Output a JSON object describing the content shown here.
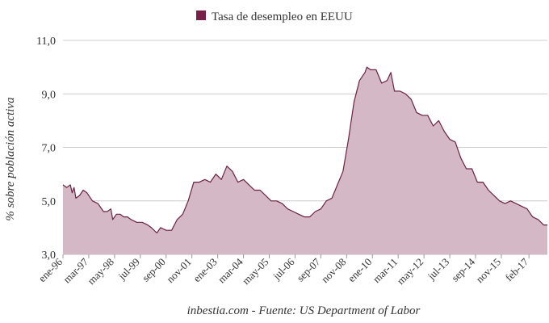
{
  "chart_data": {
    "type": "area",
    "ylabel": "% sobre población activa",
    "xlabel": "inbestia.com - Fuente: US Department of Labor",
    "ylim": [
      3.0,
      11.0
    ],
    "yticks": [
      "3,0",
      "5,0",
      "7,0",
      "9,0",
      "11,0"
    ],
    "ytick_values": [
      3,
      5,
      7,
      9,
      11
    ],
    "xlim": [
      "1996-01",
      "2017-12"
    ],
    "xticks": [
      {
        "label": "ene-96",
        "date": "1996-01"
      },
      {
        "label": "mar-97",
        "date": "1997-03"
      },
      {
        "label": "may-98",
        "date": "1998-05"
      },
      {
        "label": "jul-99",
        "date": "1999-07"
      },
      {
        "label": "sep-00",
        "date": "2000-09"
      },
      {
        "label": "nov-01",
        "date": "2001-11"
      },
      {
        "label": "ene-03",
        "date": "2003-01"
      },
      {
        "label": "mar-04",
        "date": "2004-03"
      },
      {
        "label": "may-05",
        "date": "2005-05"
      },
      {
        "label": "jul-06",
        "date": "2006-07"
      },
      {
        "label": "sep-07",
        "date": "2007-09"
      },
      {
        "label": "nov-08",
        "date": "2008-11"
      },
      {
        "label": "ene-10",
        "date": "2010-01"
      },
      {
        "label": "mar-11",
        "date": "2011-03"
      },
      {
        "label": "may-12",
        "date": "2012-05"
      },
      {
        "label": "jul-13",
        "date": "2013-07"
      },
      {
        "label": "sep-14",
        "date": "2014-09"
      },
      {
        "label": "nov-15",
        "date": "2015-11"
      },
      {
        "label": "feb-17",
        "date": "2017-02"
      }
    ],
    "grid": true,
    "legend_position": "top-center",
    "series": [
      {
        "name": "Tasa de desempleo en EEUU",
        "line_color": "#6d2142",
        "fill_color": "#d5b8c6",
        "legend_color": "#7a1f48",
        "points": [
          [
            "1996-01",
            5.6
          ],
          [
            "1996-03",
            5.5
          ],
          [
            "1996-05",
            5.6
          ],
          [
            "1996-06",
            5.3
          ],
          [
            "1996-07",
            5.5
          ],
          [
            "1996-08",
            5.1
          ],
          [
            "1996-10",
            5.2
          ],
          [
            "1996-12",
            5.4
          ],
          [
            "1997-02",
            5.3
          ],
          [
            "1997-05",
            5.0
          ],
          [
            "1997-08",
            4.9
          ],
          [
            "1997-11",
            4.6
          ],
          [
            "1998-01",
            4.6
          ],
          [
            "1998-03",
            4.7
          ],
          [
            "1998-04",
            4.3
          ],
          [
            "1998-06",
            4.5
          ],
          [
            "1998-08",
            4.5
          ],
          [
            "1998-10",
            4.4
          ],
          [
            "1998-12",
            4.4
          ],
          [
            "1999-02",
            4.3
          ],
          [
            "1999-05",
            4.2
          ],
          [
            "1999-08",
            4.2
          ],
          [
            "1999-11",
            4.1
          ],
          [
            "2000-01",
            4.0
          ],
          [
            "2000-04",
            3.8
          ],
          [
            "2000-06",
            4.0
          ],
          [
            "2000-09",
            3.9
          ],
          [
            "2000-12",
            3.9
          ],
          [
            "2001-03",
            4.3
          ],
          [
            "2001-06",
            4.5
          ],
          [
            "2001-09",
            5.0
          ],
          [
            "2001-12",
            5.7
          ],
          [
            "2002-03",
            5.7
          ],
          [
            "2002-06",
            5.8
          ],
          [
            "2002-09",
            5.7
          ],
          [
            "2002-12",
            6.0
          ],
          [
            "2003-03",
            5.8
          ],
          [
            "2003-06",
            6.3
          ],
          [
            "2003-09",
            6.1
          ],
          [
            "2003-12",
            5.7
          ],
          [
            "2004-03",
            5.8
          ],
          [
            "2004-06",
            5.6
          ],
          [
            "2004-09",
            5.4
          ],
          [
            "2004-12",
            5.4
          ],
          [
            "2005-03",
            5.2
          ],
          [
            "2005-06",
            5.0
          ],
          [
            "2005-09",
            5.0
          ],
          [
            "2005-12",
            4.9
          ],
          [
            "2006-03",
            4.7
          ],
          [
            "2006-06",
            4.6
          ],
          [
            "2006-09",
            4.5
          ],
          [
            "2006-12",
            4.4
          ],
          [
            "2007-03",
            4.4
          ],
          [
            "2007-06",
            4.6
          ],
          [
            "2007-09",
            4.7
          ],
          [
            "2007-12",
            5.0
          ],
          [
            "2008-03",
            5.1
          ],
          [
            "2008-06",
            5.6
          ],
          [
            "2008-09",
            6.1
          ],
          [
            "2008-12",
            7.3
          ],
          [
            "2009-03",
            8.7
          ],
          [
            "2009-06",
            9.5
          ],
          [
            "2009-09",
            9.8
          ],
          [
            "2009-10",
            10.0
          ],
          [
            "2009-12",
            9.9
          ],
          [
            "2010-03",
            9.9
          ],
          [
            "2010-06",
            9.4
          ],
          [
            "2010-09",
            9.5
          ],
          [
            "2010-11",
            9.8
          ],
          [
            "2011-01",
            9.1
          ],
          [
            "2011-04",
            9.1
          ],
          [
            "2011-07",
            9.0
          ],
          [
            "2011-10",
            8.8
          ],
          [
            "2012-01",
            8.3
          ],
          [
            "2012-04",
            8.2
          ],
          [
            "2012-07",
            8.2
          ],
          [
            "2012-10",
            7.8
          ],
          [
            "2013-01",
            8.0
          ],
          [
            "2013-04",
            7.6
          ],
          [
            "2013-07",
            7.3
          ],
          [
            "2013-10",
            7.2
          ],
          [
            "2014-01",
            6.6
          ],
          [
            "2014-04",
            6.2
          ],
          [
            "2014-07",
            6.2
          ],
          [
            "2014-10",
            5.7
          ],
          [
            "2015-01",
            5.7
          ],
          [
            "2015-04",
            5.4
          ],
          [
            "2015-07",
            5.2
          ],
          [
            "2015-10",
            5.0
          ],
          [
            "2016-01",
            4.9
          ],
          [
            "2016-04",
            5.0
          ],
          [
            "2016-07",
            4.9
          ],
          [
            "2016-10",
            4.8
          ],
          [
            "2017-01",
            4.7
          ],
          [
            "2017-04",
            4.4
          ],
          [
            "2017-07",
            4.3
          ],
          [
            "2017-10",
            4.1
          ],
          [
            "2017-12",
            4.1
          ]
        ]
      }
    ]
  }
}
